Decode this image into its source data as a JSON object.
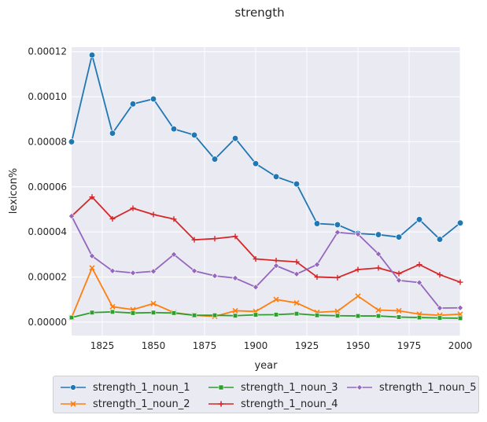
{
  "chart_data": {
    "type": "line",
    "title": "strength",
    "xlabel": "year",
    "ylabel": "lexicon%",
    "xlim": [
      1810,
      2000
    ],
    "ylim": [
      -6e-06,
      0.000122
    ],
    "x_ticks": [
      "1825",
      "1850",
      "1875",
      "1900",
      "1925",
      "1950",
      "1975",
      "2000"
    ],
    "y_ticks": [
      "0.00000",
      "0.00002",
      "0.00004",
      "0.00006",
      "0.00008",
      "0.00010",
      "0.00012"
    ],
    "grid": true,
    "legend_position": "bottom",
    "x": [
      1810,
      1820,
      1830,
      1840,
      1850,
      1860,
      1870,
      1880,
      1890,
      1900,
      1910,
      1920,
      1930,
      1940,
      1950,
      1960,
      1970,
      1980,
      1990,
      2000
    ],
    "series": [
      {
        "name": "strength_1_noun_1",
        "color": "#1f77b4",
        "marker": "circle",
        "values": [
          8e-05,
          0.0001185,
          8.38e-05,
          9.68e-05,
          9.9e-05,
          8.57e-05,
          8.3e-05,
          7.23e-05,
          8.15e-05,
          7.03e-05,
          6.45e-05,
          6.13e-05,
          4.37e-05,
          4.32e-05,
          3.93e-05,
          3.88e-05,
          3.77e-05,
          4.55e-05,
          3.67e-05,
          4.4e-05
        ]
      },
      {
        "name": "strength_1_noun_2",
        "color": "#ff7f0e",
        "marker": "x",
        "values": [
          2e-06,
          2.4e-05,
          6.8e-06,
          5.5e-06,
          8.2e-06,
          4.2e-06,
          3e-06,
          2.5e-06,
          5e-06,
          4.7e-06,
          1e-05,
          8.5e-06,
          4.3e-06,
          4.8e-06,
          1.15e-05,
          5.3e-06,
          5e-06,
          3.5e-06,
          3e-06,
          3.5e-06
        ]
      },
      {
        "name": "strength_1_noun_3",
        "color": "#2ca02c",
        "marker": "square",
        "values": [
          2e-06,
          4.2e-06,
          4.5e-06,
          4e-06,
          4.2e-06,
          4e-06,
          3e-06,
          3e-06,
          2.8e-06,
          3.2e-06,
          3.3e-06,
          3.7e-06,
          3e-06,
          2.8e-06,
          2.7e-06,
          2.7e-06,
          2.2e-06,
          2e-06,
          1.8e-06,
          1.7e-06
        ]
      },
      {
        "name": "strength_1_noun_4",
        "color": "#d62728",
        "marker": "plus",
        "values": [
          4.7e-05,
          5.55e-05,
          4.58e-05,
          5.05e-05,
          4.77e-05,
          4.57e-05,
          3.65e-05,
          3.7e-05,
          3.8e-05,
          2.8e-05,
          2.73e-05,
          2.67e-05,
          2e-05,
          1.97e-05,
          2.33e-05,
          2.4e-05,
          2.15e-05,
          2.55e-05,
          2.1e-05,
          1.77e-05
        ]
      },
      {
        "name": "strength_1_noun_5",
        "color": "#9467bd",
        "marker": "diamond",
        "values": [
          4.7e-05,
          2.93e-05,
          2.27e-05,
          2.18e-05,
          2.25e-05,
          3e-05,
          2.27e-05,
          2.05e-05,
          1.95e-05,
          1.55e-05,
          2.5e-05,
          2.13e-05,
          2.55e-05,
          3.98e-05,
          3.9e-05,
          3.02e-05,
          1.85e-05,
          1.75e-05,
          6.2e-06,
          6.3e-06
        ]
      }
    ]
  }
}
